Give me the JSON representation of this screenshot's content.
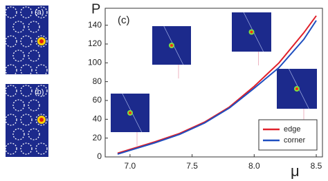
{
  "panels": [
    {
      "label": "(a)"
    },
    {
      "label": "(b)"
    }
  ],
  "chart_data": {
    "type": "line",
    "panel_label": "(c)",
    "xlabel": "μ",
    "ylabel": "P",
    "x": [
      6.9,
      7.0,
      7.2,
      7.4,
      7.6,
      7.8,
      8.0,
      8.2,
      8.4,
      8.5
    ],
    "series": [
      {
        "name": "edge",
        "color": "#e0202a",
        "values": [
          4,
          8,
          16,
          25,
          37,
          53,
          75,
          100,
          132,
          150
        ]
      },
      {
        "name": "corner",
        "color": "#1f4fc0",
        "values": [
          3,
          7,
          15,
          24,
          36,
          52,
          73,
          95,
          125,
          145
        ]
      }
    ],
    "xlim": [
      6.8,
      8.55
    ],
    "ylim": [
      0,
      158
    ],
    "xticks": [
      {
        "value": 7,
        "label": "7.0"
      },
      {
        "value": 7.5,
        "label": "7.5"
      },
      {
        "value": 8,
        "label": "8.0"
      },
      {
        "value": 8.5,
        "label": "8.5"
      }
    ],
    "yticks": [
      0,
      20,
      40,
      60,
      80,
      100,
      120,
      140
    ],
    "legend": "lower right"
  }
}
